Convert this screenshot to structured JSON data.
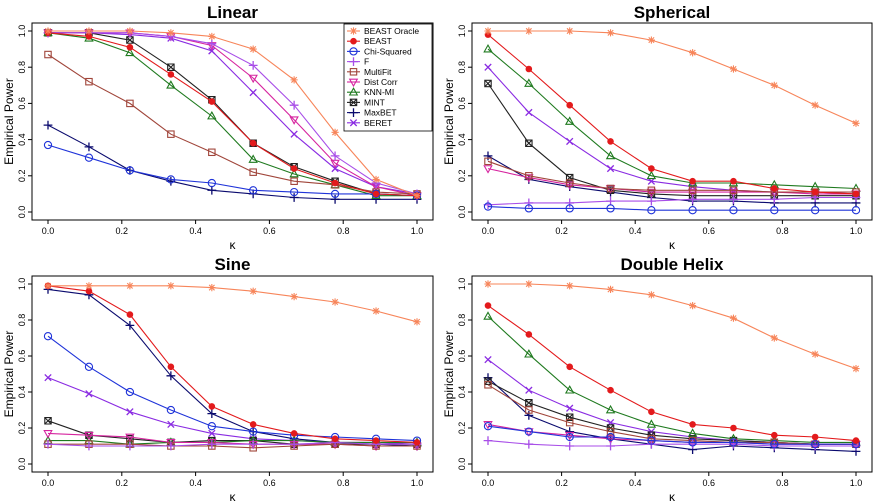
{
  "legend": [
    "BEAST Oracle",
    "BEAST",
    "Chi-Squared",
    "F",
    "MultiFit",
    "Dist Corr",
    "KNN-MI",
    "MINT",
    "MaxBET",
    "BERET"
  ],
  "series_style": [
    {
      "color": "#f7855a",
      "marker": "asterisk"
    },
    {
      "color": "#e31a1c",
      "marker": "dot"
    },
    {
      "color": "#1f33d9",
      "marker": "circle"
    },
    {
      "color": "#a84ee8",
      "marker": "plus"
    },
    {
      "color": "#a0453a",
      "marker": "square"
    },
    {
      "color": "#d6249f",
      "marker": "triangle-down"
    },
    {
      "color": "#1f7a1f",
      "marker": "triangle-up"
    },
    {
      "color": "#222222",
      "marker": "square-x"
    },
    {
      "color": "#0a0a6e",
      "marker": "plus"
    },
    {
      "color": "#8a2be2",
      "marker": "cross"
    }
  ],
  "chart_data": [
    {
      "type": "line",
      "title": "Linear",
      "xlabel": "κ",
      "ylabel": "Empirical Power",
      "x": [
        0.0,
        0.111,
        0.222,
        0.333,
        0.444,
        0.556,
        0.667,
        0.778,
        0.889,
        1.0
      ],
      "xlim": [
        0,
        1
      ],
      "ylim": [
        0,
        1
      ],
      "xticks": [
        "0.0",
        "0.2",
        "0.4",
        "0.6",
        "0.8",
        "1.0"
      ],
      "yticks": [
        "0.0",
        "0.2",
        "0.4",
        "0.6",
        "0.8",
        "1.0"
      ],
      "series": [
        {
          "name": "BEAST Oracle",
          "values": [
            1.0,
            1.0,
            1.0,
            0.99,
            0.97,
            0.9,
            0.73,
            0.44,
            0.18,
            0.09
          ]
        },
        {
          "name": "BEAST",
          "values": [
            0.99,
            0.97,
            0.91,
            0.76,
            0.61,
            0.38,
            0.24,
            0.16,
            0.1,
            0.09
          ]
        },
        {
          "name": "Chi-Squared",
          "values": [
            0.37,
            0.3,
            0.23,
            0.18,
            0.16,
            0.12,
            0.11,
            0.1,
            0.1,
            0.09
          ]
        },
        {
          "name": "F",
          "values": [
            0.99,
            0.99,
            0.99,
            0.97,
            0.93,
            0.81,
            0.59,
            0.31,
            0.16,
            0.1
          ]
        },
        {
          "name": "MultiFit",
          "values": [
            0.87,
            0.72,
            0.6,
            0.43,
            0.33,
            0.22,
            0.17,
            0.15,
            0.11,
            0.1
          ]
        },
        {
          "name": "Dist Corr",
          "values": [
            0.99,
            0.99,
            0.99,
            0.97,
            0.92,
            0.74,
            0.51,
            0.27,
            0.14,
            0.09
          ]
        },
        {
          "name": "KNN-MI",
          "values": [
            0.99,
            0.96,
            0.88,
            0.7,
            0.53,
            0.29,
            0.21,
            0.15,
            0.09,
            0.09
          ]
        },
        {
          "name": "MINT",
          "values": [
            0.99,
            0.99,
            0.95,
            0.8,
            0.62,
            0.38,
            0.25,
            0.17,
            0.1,
            0.09
          ]
        },
        {
          "name": "MaxBET",
          "values": [
            0.48,
            0.36,
            0.23,
            0.17,
            0.12,
            0.1,
            0.08,
            0.07,
            0.07,
            0.07
          ]
        },
        {
          "name": "BERET",
          "values": [
            0.99,
            0.99,
            0.98,
            0.96,
            0.89,
            0.66,
            0.43,
            0.24,
            0.14,
            0.1
          ]
        }
      ]
    },
    {
      "type": "line",
      "title": "Spherical",
      "xlabel": "κ",
      "ylabel": "Empirical Power",
      "x": [
        0.0,
        0.111,
        0.222,
        0.333,
        0.444,
        0.556,
        0.667,
        0.778,
        0.889,
        1.0
      ],
      "xlim": [
        0,
        1
      ],
      "ylim": [
        0,
        1
      ],
      "xticks": [
        "0.0",
        "0.2",
        "0.4",
        "0.6",
        "0.8",
        "1.0"
      ],
      "yticks": [
        "0.0",
        "0.2",
        "0.4",
        "0.6",
        "0.8",
        "1.0"
      ],
      "series": [
        {
          "name": "BEAST Oracle",
          "values": [
            1.0,
            1.0,
            1.0,
            0.99,
            0.95,
            0.88,
            0.79,
            0.7,
            0.59,
            0.49
          ]
        },
        {
          "name": "BEAST",
          "values": [
            0.98,
            0.79,
            0.59,
            0.39,
            0.24,
            0.17,
            0.17,
            0.13,
            0.11,
            0.1
          ]
        },
        {
          "name": "Chi-Squared",
          "values": [
            0.03,
            0.02,
            0.02,
            0.02,
            0.01,
            0.01,
            0.01,
            0.01,
            0.01,
            0.01
          ]
        },
        {
          "name": "F",
          "values": [
            0.04,
            0.05,
            0.05,
            0.06,
            0.06,
            0.07,
            0.07,
            0.07,
            0.08,
            0.08
          ]
        },
        {
          "name": "MultiFit",
          "values": [
            0.28,
            0.2,
            0.16,
            0.13,
            0.12,
            0.12,
            0.12,
            0.11,
            0.11,
            0.11
          ]
        },
        {
          "name": "Dist Corr",
          "values": [
            0.24,
            0.19,
            0.15,
            0.13,
            0.11,
            0.11,
            0.11,
            0.11,
            0.1,
            0.1
          ]
        },
        {
          "name": "KNN-MI",
          "values": [
            0.9,
            0.71,
            0.5,
            0.31,
            0.2,
            0.16,
            0.16,
            0.15,
            0.14,
            0.13
          ]
        },
        {
          "name": "MINT",
          "values": [
            0.71,
            0.38,
            0.19,
            0.12,
            0.1,
            0.09,
            0.09,
            0.09,
            0.09,
            0.09
          ]
        },
        {
          "name": "MaxBET",
          "values": [
            0.31,
            0.18,
            0.14,
            0.11,
            0.08,
            0.06,
            0.06,
            0.05,
            0.05,
            0.05
          ]
        },
        {
          "name": "BERET",
          "values": [
            0.8,
            0.55,
            0.39,
            0.24,
            0.17,
            0.14,
            0.12,
            0.11,
            0.11,
            0.1
          ]
        }
      ]
    },
    {
      "type": "line",
      "title": "Sine",
      "xlabel": "κ",
      "ylabel": "Empirical Power",
      "x": [
        0.0,
        0.111,
        0.222,
        0.333,
        0.444,
        0.556,
        0.667,
        0.778,
        0.889,
        1.0
      ],
      "xlim": [
        0,
        1
      ],
      "ylim": [
        0,
        1
      ],
      "xticks": [
        "0.0",
        "0.2",
        "0.4",
        "0.6",
        "0.8",
        "1.0"
      ],
      "yticks": [
        "0.0",
        "0.2",
        "0.4",
        "0.6",
        "0.8",
        "1.0"
      ],
      "series": [
        {
          "name": "BEAST Oracle",
          "values": [
            0.99,
            0.99,
            0.99,
            0.99,
            0.98,
            0.96,
            0.93,
            0.9,
            0.85,
            0.79
          ]
        },
        {
          "name": "BEAST",
          "values": [
            0.99,
            0.96,
            0.83,
            0.54,
            0.32,
            0.22,
            0.17,
            0.14,
            0.13,
            0.12
          ]
        },
        {
          "name": "Chi-Squared",
          "values": [
            0.71,
            0.54,
            0.4,
            0.3,
            0.21,
            0.18,
            0.16,
            0.15,
            0.14,
            0.13
          ]
        },
        {
          "name": "F",
          "values": [
            0.11,
            0.1,
            0.1,
            0.1,
            0.11,
            0.11,
            0.11,
            0.12,
            0.11,
            0.11
          ]
        },
        {
          "name": "MultiFit",
          "values": [
            0.11,
            0.11,
            0.11,
            0.1,
            0.1,
            0.09,
            0.1,
            0.11,
            0.1,
            0.1
          ]
        },
        {
          "name": "Dist Corr",
          "values": [
            0.17,
            0.16,
            0.15,
            0.12,
            0.12,
            0.11,
            0.11,
            0.11,
            0.1,
            0.1
          ]
        },
        {
          "name": "KNN-MI",
          "values": [
            0.13,
            0.13,
            0.11,
            0.12,
            0.12,
            0.13,
            0.13,
            0.12,
            0.12,
            0.12
          ]
        },
        {
          "name": "MINT",
          "values": [
            0.24,
            0.16,
            0.14,
            0.12,
            0.13,
            0.13,
            0.11,
            0.11,
            0.11,
            0.11
          ]
        },
        {
          "name": "MaxBET",
          "values": [
            0.97,
            0.94,
            0.77,
            0.49,
            0.28,
            0.18,
            0.14,
            0.12,
            0.11,
            0.1
          ]
        },
        {
          "name": "BERET",
          "values": [
            0.48,
            0.39,
            0.29,
            0.22,
            0.17,
            0.14,
            0.13,
            0.12,
            0.12,
            0.11
          ]
        }
      ]
    },
    {
      "type": "line",
      "title": "Double Helix",
      "xlabel": "κ",
      "ylabel": "Empirical Power",
      "x": [
        0.0,
        0.111,
        0.222,
        0.333,
        0.444,
        0.556,
        0.667,
        0.778,
        0.889,
        1.0
      ],
      "xlim": [
        0,
        1
      ],
      "ylim": [
        0,
        1
      ],
      "xticks": [
        "0.0",
        "0.2",
        "0.4",
        "0.6",
        "0.8",
        "1.0"
      ],
      "yticks": [
        "0.0",
        "0.2",
        "0.4",
        "0.6",
        "0.8",
        "1.0"
      ],
      "series": [
        {
          "name": "BEAST Oracle",
          "values": [
            1.0,
            1.0,
            0.99,
            0.97,
            0.94,
            0.88,
            0.81,
            0.7,
            0.61,
            0.53
          ]
        },
        {
          "name": "BEAST",
          "values": [
            0.88,
            0.72,
            0.54,
            0.41,
            0.29,
            0.22,
            0.2,
            0.16,
            0.15,
            0.13
          ]
        },
        {
          "name": "Chi-Squared",
          "values": [
            0.21,
            0.18,
            0.15,
            0.15,
            0.13,
            0.12,
            0.12,
            0.11,
            0.11,
            0.11
          ]
        },
        {
          "name": "F",
          "values": [
            0.13,
            0.11,
            0.1,
            0.1,
            0.11,
            0.11,
            0.11,
            0.1,
            0.1,
            0.1
          ]
        },
        {
          "name": "MultiFit",
          "values": [
            0.44,
            0.3,
            0.23,
            0.18,
            0.14,
            0.13,
            0.12,
            0.12,
            0.11,
            0.11
          ]
        },
        {
          "name": "Dist Corr",
          "values": [
            0.22,
            0.18,
            0.16,
            0.14,
            0.13,
            0.12,
            0.12,
            0.11,
            0.11,
            0.11
          ]
        },
        {
          "name": "KNN-MI",
          "values": [
            0.82,
            0.61,
            0.41,
            0.3,
            0.22,
            0.17,
            0.14,
            0.13,
            0.12,
            0.12
          ]
        },
        {
          "name": "MINT",
          "values": [
            0.46,
            0.34,
            0.26,
            0.2,
            0.16,
            0.14,
            0.13,
            0.12,
            0.11,
            0.11
          ]
        },
        {
          "name": "MaxBET",
          "values": [
            0.48,
            0.27,
            0.18,
            0.14,
            0.11,
            0.08,
            0.1,
            0.09,
            0.08,
            0.07
          ]
        },
        {
          "name": "BERET",
          "values": [
            0.58,
            0.41,
            0.31,
            0.23,
            0.18,
            0.15,
            0.13,
            0.12,
            0.11,
            0.11
          ]
        }
      ]
    }
  ]
}
